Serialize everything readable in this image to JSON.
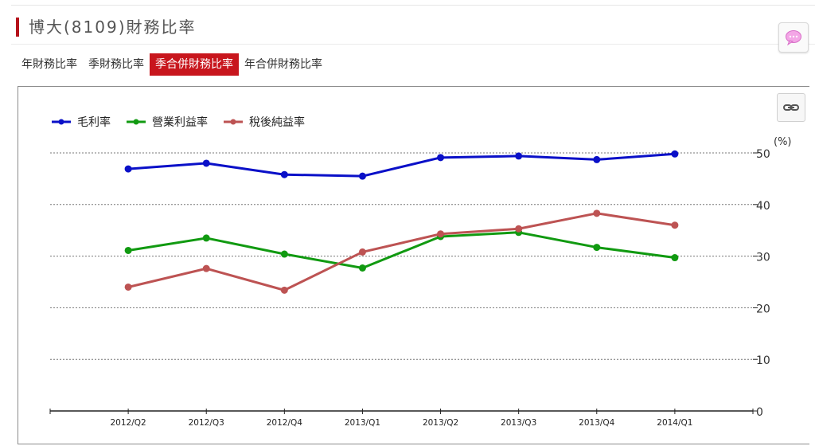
{
  "header": {
    "title": "博大(8109)財務比率"
  },
  "tabs": [
    {
      "label": "年財務比率",
      "active": false
    },
    {
      "label": "季財務比率",
      "active": false
    },
    {
      "label": "季合併財務比率",
      "active": true
    },
    {
      "label": "年合併財務比率",
      "active": false
    }
  ],
  "icons": {
    "chat": "chat-bubble-icon",
    "link": "chain-link-icon"
  },
  "colors": {
    "accent": "#c8161d",
    "gross": "#0a10c8",
    "operating": "#119a11",
    "net": "#bd5353"
  },
  "chart_data": {
    "type": "line",
    "categories": [
      "2012/Q2",
      "2012/Q3",
      "2012/Q4",
      "2013/Q1",
      "2013/Q2",
      "2013/Q3",
      "2013/Q4",
      "2014/Q1"
    ],
    "series": [
      {
        "name": "毛利率",
        "color": "#0a10c8",
        "values": [
          46.9,
          48.0,
          45.8,
          45.5,
          49.1,
          49.4,
          48.7,
          49.8
        ]
      },
      {
        "name": "營業利益率",
        "color": "#119a11",
        "values": [
          31.1,
          33.5,
          30.4,
          27.7,
          33.8,
          34.6,
          31.7,
          29.7
        ]
      },
      {
        "name": "稅後純益率",
        "color": "#bd5353",
        "values": [
          24.0,
          27.6,
          23.4,
          30.8,
          34.3,
          35.3,
          38.3,
          36.0
        ]
      }
    ],
    "yticks": [
      "0",
      "10",
      "20",
      "30",
      "40",
      "50"
    ],
    "yunit": "(%)",
    "ylim": [
      0,
      50
    ],
    "grid": true,
    "legend": "top-left"
  }
}
